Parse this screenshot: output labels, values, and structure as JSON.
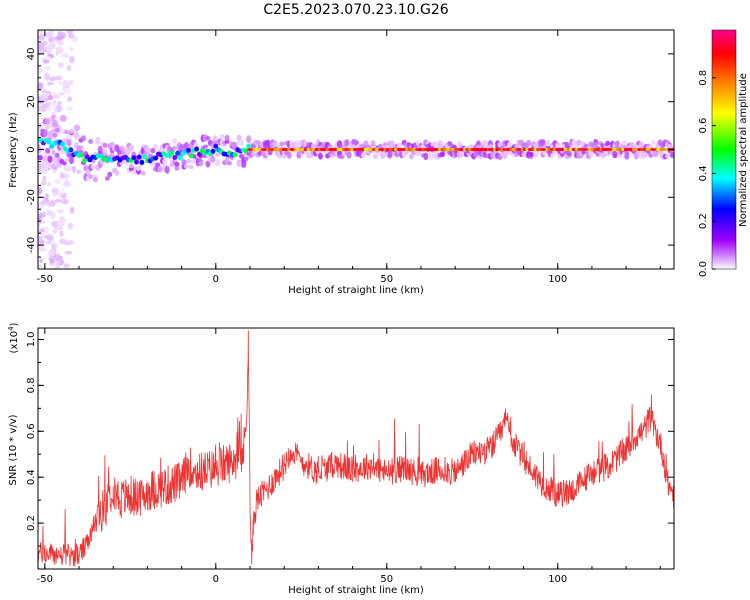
{
  "title": "C2E5.2023.070.23.10.G26",
  "chart_data": [
    {
      "type": "heatmap",
      "title": "",
      "xlabel": "Height of straight line (km)",
      "ylabel": "Frequency (Hz)",
      "xlim": [
        -52,
        134
      ],
      "ylim": [
        -50,
        50
      ],
      "x_ticks": [
        -50,
        0,
        50,
        100
      ],
      "y_ticks": [
        -40,
        -20,
        0,
        20,
        40
      ],
      "colorbar": {
        "label": "Normalized spectral amplitude",
        "range": [
          0,
          1
        ],
        "ticks": [
          0.0,
          0.2,
          0.4,
          0.6,
          0.8
        ],
        "colormap": [
          "#ffffff",
          "#e3b8ff",
          "#a000ff",
          "#0000ff",
          "#00ffff",
          "#00ff00",
          "#ffff00",
          "#ff8000",
          "#ff0000",
          "#ff0090"
        ]
      },
      "ridge": [
        [
          -50,
          3
        ],
        [
          -45,
          2
        ],
        [
          -40,
          -3
        ],
        [
          -35,
          -4
        ],
        [
          -30,
          -4
        ],
        [
          -25,
          -4
        ],
        [
          -20,
          -4
        ],
        [
          -15,
          -3
        ],
        [
          -10,
          -2
        ],
        [
          -5,
          -1
        ],
        [
          0,
          0
        ],
        [
          5,
          -1
        ],
        [
          10,
          0
        ],
        [
          20,
          0
        ],
        [
          40,
          0
        ],
        [
          60,
          0
        ],
        [
          80,
          0
        ],
        [
          100,
          0
        ],
        [
          120,
          0
        ],
        [
          134,
          0
        ]
      ],
      "noise_region": {
        "x": [
          -52,
          -40
        ],
        "y": [
          -50,
          50
        ]
      }
    },
    {
      "type": "line",
      "title": "",
      "xlabel": "Height of straight line (km)",
      "ylabel": "SNR (10 * v/v)",
      "y_multiplier": "(x10^4)",
      "y_multiplier_base": "(x10",
      "y_multiplier_exp": "4",
      "xlim": [
        -52,
        134
      ],
      "ylim": [
        0,
        1.05
      ],
      "x_ticks": [
        -50,
        0,
        50,
        100
      ],
      "y_ticks": [
        0.2,
        0.4,
        0.6,
        0.8,
        1.0
      ],
      "series": [
        {
          "color": "#ee3333",
          "x": [
            -52,
            -45,
            -40,
            -37,
            -35,
            -32,
            -30,
            -28,
            -25,
            -22,
            -20,
            -15,
            -10,
            -8,
            -5,
            0,
            5,
            8,
            9,
            9.5,
            10,
            10.5,
            11,
            12,
            15,
            20,
            22,
            25,
            30,
            35,
            40,
            45,
            50,
            55,
            60,
            65,
            70,
            75,
            80,
            83,
            85,
            87,
            90,
            95,
            100,
            105,
            110,
            115,
            120,
            123,
            125,
            127,
            128,
            130,
            131,
            132,
            134
          ],
          "y": [
            0.07,
            0.06,
            0.06,
            0.12,
            0.22,
            0.28,
            0.36,
            0.3,
            0.32,
            0.3,
            0.34,
            0.36,
            0.38,
            0.45,
            0.42,
            0.44,
            0.47,
            0.5,
            0.65,
            1.04,
            0.3,
            0.02,
            0.2,
            0.3,
            0.35,
            0.45,
            0.52,
            0.47,
            0.42,
            0.46,
            0.43,
            0.45,
            0.42,
            0.44,
            0.41,
            0.43,
            0.42,
            0.5,
            0.52,
            0.58,
            0.65,
            0.55,
            0.48,
            0.38,
            0.32,
            0.35,
            0.42,
            0.45,
            0.52,
            0.58,
            0.6,
            0.66,
            0.62,
            0.55,
            0.48,
            0.38,
            0.32
          ]
        }
      ]
    }
  ]
}
